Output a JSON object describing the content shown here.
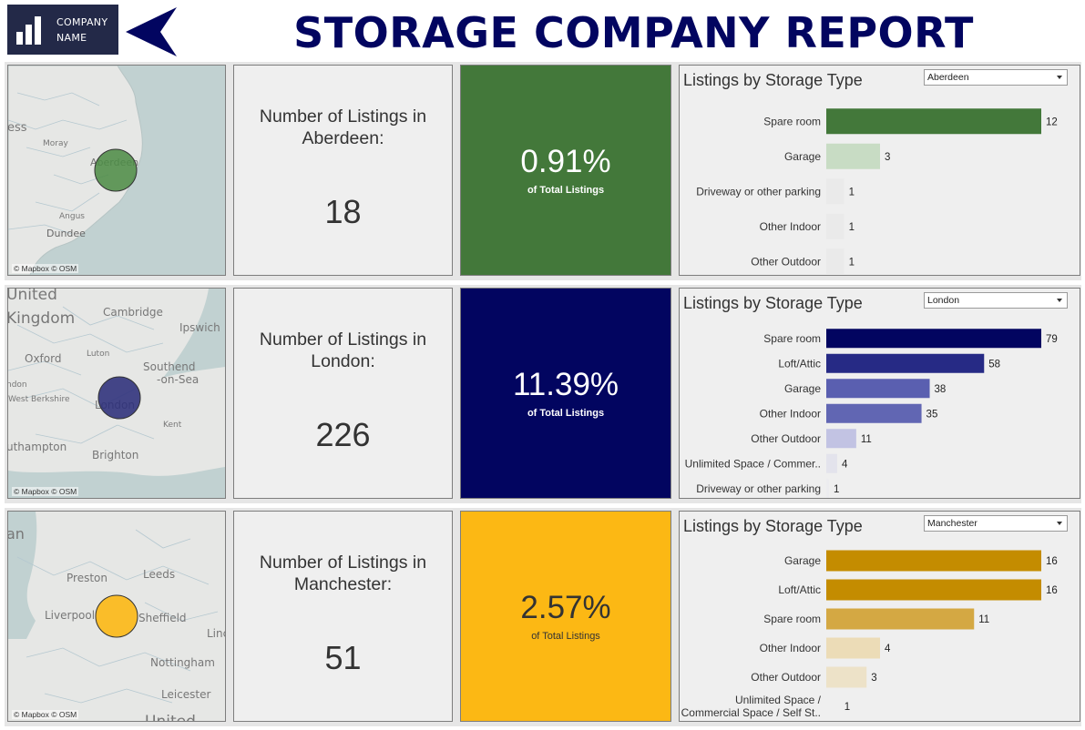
{
  "header": {
    "logo_line1": "COMPANY",
    "logo_line2": "NAME",
    "title": "STORAGE COMPANY REPORT",
    "colors": {
      "title": "#020560",
      "logo_bg": "#232948"
    },
    "back_icon": "back-arrow-icon"
  },
  "rows": [
    {
      "city": "Aberdeen",
      "count_label": "Number of Listings in Aberdeen:",
      "count": "18",
      "percent": "0.91%",
      "percent_sub": "of Total Listings",
      "kpi_bg": "#43783a",
      "kpi_fg": "#ffffff",
      "map": {
        "attribution": "© Mapbox  © OSM",
        "bubble_color": "#4a8a43",
        "places": [
          "ess",
          "Moray",
          "Aberdeen",
          "Angus",
          "Dundee"
        ]
      },
      "dropdown_value": "Aberdeen",
      "chart_data": {
        "type": "bar",
        "orientation": "horizontal",
        "title": "Listings by Storage Type",
        "categories": [
          "Spare room",
          "Garage",
          "Driveway or other parking",
          "Other Indoor",
          "Other Outdoor"
        ],
        "values": [
          12,
          3,
          1,
          1,
          1
        ],
        "colors": [
          "#43783a",
          "#c8dcc4",
          "#eaeaea",
          "#eaeaea",
          "#eaeaea"
        ],
        "xlim": [
          0,
          12
        ]
      }
    },
    {
      "city": "London",
      "count_label": "Number of Listings in London:",
      "count": "226",
      "percent": "11.39%",
      "percent_sub": "of Total Listings",
      "kpi_bg": "#020560",
      "kpi_fg": "#ffffff",
      "map": {
        "attribution": "© Mapbox  © OSM",
        "bubble_color": "#2c2f7a",
        "places": [
          "United",
          "Kingdom",
          "Cambridge",
          "Ipswich",
          "Luton",
          "Oxford",
          "Southend",
          "-on-Sea",
          "West Berkshire",
          "London",
          "Kent",
          "uthampton",
          "Brighton",
          "ndon"
        ]
      },
      "dropdown_value": "London",
      "chart_data": {
        "type": "bar",
        "orientation": "horizontal",
        "title": "Listings by Storage Type",
        "categories": [
          "Spare room",
          "Loft/Attic",
          "Garage",
          "Other Indoor",
          "Other Outdoor",
          "Unlimited Space / Commer..",
          "Driveway or other parking"
        ],
        "values": [
          79,
          58,
          38,
          35,
          11,
          4,
          1
        ],
        "colors": [
          "#020560",
          "#262a85",
          "#5a5fb0",
          "#6166b3",
          "#c2c3e3",
          "#e3e3ec",
          "#ececef"
        ],
        "xlim": [
          0,
          79
        ]
      }
    },
    {
      "city": "Manchester",
      "count_label": "Number of Listings in Manchester:",
      "count": "51",
      "percent": "2.57%",
      "percent_sub": "of Total Listings",
      "kpi_bg": "#fcb814",
      "kpi_fg": "#333333",
      "map": {
        "attribution": "© Mapbox  © OSM",
        "bubble_color": "#fcb814",
        "places": [
          "an",
          "Preston",
          "Leeds",
          "Liverpool",
          "Sheffield",
          "Linc",
          "Nottingham",
          "Leicester",
          "United"
        ]
      },
      "dropdown_value": "Manchester",
      "chart_data": {
        "type": "bar",
        "orientation": "horizontal",
        "title": "Listings by Storage Type",
        "categories": [
          "Garage",
          "Loft/Attic",
          "Spare room",
          "Other Indoor",
          "Other Outdoor",
          "Unlimited Space / Commercial Space / Self St.."
        ],
        "values": [
          16,
          16,
          11,
          4,
          3,
          1
        ],
        "colors": [
          "#c48c00",
          "#c48c00",
          "#d4a843",
          "#ecdcb7",
          "#ede2c8",
          "#efefef"
        ],
        "xlim": [
          0,
          16
        ]
      }
    }
  ]
}
